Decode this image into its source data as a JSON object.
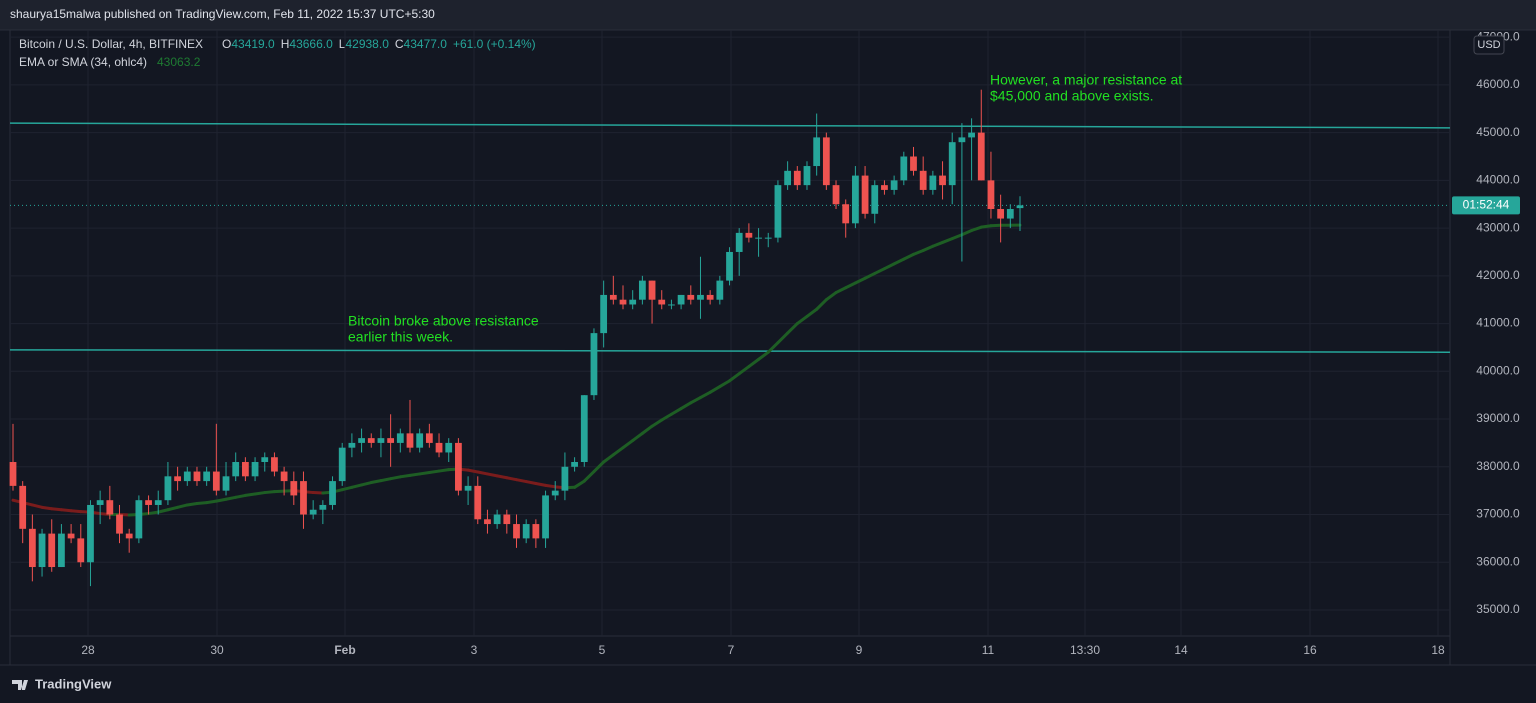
{
  "chart_data": {
    "type": "candlestick",
    "header": "shaurya15malwa published on TradingView.com, Feb 11, 2022 15:37 UTC+5:30",
    "symbol": "Bitcoin / U.S. Dollar, 4h, BITFINEX",
    "ohlc_legend": [
      "O",
      "43419.0",
      "H",
      "43666.0",
      "L",
      "42938.0",
      "C",
      "43477.0",
      "+61.0 (+0.14%)"
    ],
    "indicator_name": "EMA or SMA (34, ohlc4)",
    "indicator_value": "43063.2",
    "currency": "USD",
    "countdown": "01:52:44",
    "brand": "TradingView",
    "annotations": [
      "However, a major resistance at",
      "$45,000 and above exists.",
      "Bitcoin broke above resistance",
      "earlier this week."
    ],
    "up_color": "#26a69a",
    "down_color": "#ef5350",
    "ema_up_color": "#1e5e24",
    "ema_down_color": "#7a1c1c",
    "line_color": "#26a69a",
    "annotation_color": "#22e022",
    "grid": true,
    "ylim": [
      34455,
      47150
    ],
    "yticks": [
      {
        "value": 35000,
        "label": "35000.0"
      },
      {
        "value": 36000,
        "label": "36000.0"
      },
      {
        "value": 37000,
        "label": "37000.0"
      },
      {
        "value": 38000,
        "label": "38000.0"
      },
      {
        "value": 39000,
        "label": "39000.0"
      },
      {
        "value": 40000,
        "label": "40000.0"
      },
      {
        "value": 41000,
        "label": "41000.0"
      },
      {
        "value": 42000,
        "label": "42000.0"
      },
      {
        "value": 43000,
        "label": "43000.0"
      },
      {
        "value": 44000,
        "label": "44000.0"
      },
      {
        "value": 45000,
        "label": "45000.0"
      },
      {
        "value": 46000,
        "label": "46000.0"
      },
      {
        "value": 47000,
        "label": "47000.0"
      }
    ],
    "xtick_labels": [
      "28",
      "30",
      "Feb",
      "3",
      "5",
      "7",
      "9",
      "11",
      "13:30",
      "14",
      "16",
      "18"
    ],
    "last_price": 43477,
    "resistance": [
      {
        "start": 45200,
        "end": 45100
      },
      {
        "start": 40450,
        "end": 40400
      }
    ],
    "open": [
      38100,
      37600,
      36700,
      35900,
      36600,
      35900,
      36600,
      36500,
      36000,
      37200,
      37300,
      37000,
      36600,
      36500,
      37300,
      37200,
      37300,
      37800,
      37700,
      37900,
      37700,
      37900,
      37500,
      37800,
      38100,
      37800,
      38100,
      38200,
      37900,
      37700,
      37700,
      37000,
      37100,
      37200,
      37700,
      38400,
      38500,
      38600,
      38500,
      38600,
      38500,
      38700,
      38400,
      38700,
      38500,
      38300,
      38500,
      37500,
      37600,
      36900,
      36800,
      37000,
      36800,
      36500,
      36800,
      36500,
      37400,
      37500,
      38000,
      38100,
      39500,
      40800,
      41600,
      41500,
      41400,
      41500,
      41900,
      41500,
      41400,
      41400,
      41600,
      41500,
      41600,
      41500,
      41900,
      42500,
      42900,
      42800,
      42800,
      42800,
      43900,
      44200,
      43900,
      44300,
      44900,
      43900,
      43500,
      43100,
      44100,
      43300,
      43900,
      43800,
      44000,
      44500,
      44200,
      43800,
      44100,
      43900,
      44800,
      44900,
      45000,
      44000,
      43400,
      43200,
      43419
    ],
    "high": [
      38900,
      37700,
      37000,
      36700,
      36900,
      36800,
      36800,
      36800,
      37300,
      37500,
      37600,
      37200,
      36700,
      37400,
      37400,
      37500,
      38100,
      38000,
      38000,
      38000,
      38000,
      38900,
      38100,
      38300,
      38200,
      38200,
      38300,
      38300,
      38000,
      37900,
      37900,
      37300,
      37300,
      37800,
      38500,
      38700,
      38800,
      38700,
      38800,
      39100,
      38800,
      39400,
      38800,
      38900,
      38700,
      38600,
      38600,
      37800,
      37800,
      37100,
      37100,
      37100,
      37000,
      36900,
      36900,
      37500,
      37700,
      38300,
      38200,
      39500,
      40900,
      41900,
      42000,
      41800,
      41700,
      42000,
      41900,
      41700,
      41500,
      41600,
      41800,
      42400,
      41700,
      42000,
      42600,
      43000,
      43100,
      43000,
      42900,
      44000,
      44400,
      44300,
      44400,
      45400,
      45000,
      44000,
      43600,
      44300,
      44300,
      44000,
      44000,
      44100,
      44600,
      44700,
      44500,
      44200,
      44400,
      45000,
      45200,
      45300,
      45900,
      44600,
      43700,
      43500,
      43666
    ],
    "low": [
      37500,
      36400,
      35600,
      35700,
      35800,
      35900,
      36400,
      35900,
      35500,
      36800,
      36900,
      36400,
      36200,
      36400,
      37000,
      37000,
      37200,
      37500,
      37600,
      37600,
      37600,
      37400,
      37400,
      37700,
      37700,
      37700,
      37900,
      37800,
      37400,
      37200,
      36700,
      36900,
      36800,
      37100,
      37600,
      38200,
      38300,
      38400,
      38200,
      38000,
      38300,
      38300,
      38300,
      38400,
      38200,
      38100,
      37400,
      37200,
      36800,
      36600,
      36700,
      36600,
      36300,
      36400,
      36300,
      36300,
      37300,
      37300,
      37900,
      38000,
      39400,
      40500,
      41400,
      41300,
      41300,
      41400,
      41000,
      41300,
      41300,
      41300,
      41400,
      41100,
      41400,
      41400,
      41800,
      42000,
      42700,
      42400,
      42600,
      42700,
      43800,
      43800,
      43800,
      44100,
      43800,
      43400,
      42800,
      43000,
      43200,
      43100,
      43700,
      43700,
      43900,
      44100,
      43700,
      43700,
      43600,
      43500,
      42300,
      44000,
      44000,
      43200,
      42700,
      43000,
      42938
    ],
    "close": [
      37600,
      36700,
      35900,
      36600,
      35900,
      36600,
      36500,
      36000,
      37200,
      37300,
      37000,
      36600,
      36500,
      37300,
      37200,
      37300,
      37800,
      37700,
      37900,
      37700,
      37900,
      37500,
      37800,
      38100,
      37800,
      38100,
      38200,
      37900,
      37700,
      37400,
      37000,
      37100,
      37200,
      37700,
      38400,
      38500,
      38600,
      38500,
      38600,
      38500,
      38700,
      38400,
      38700,
      38500,
      38300,
      38500,
      37500,
      37600,
      36900,
      36800,
      37000,
      36800,
      36500,
      36800,
      36500,
      37400,
      37500,
      38000,
      38100,
      39500,
      40800,
      41600,
      41500,
      41400,
      41500,
      41900,
      41500,
      41400,
      41400,
      41600,
      41500,
      41600,
      41500,
      41900,
      42500,
      42900,
      42800,
      42800,
      42800,
      43900,
      44200,
      43900,
      44300,
      44900,
      43900,
      43500,
      43100,
      44100,
      43300,
      43900,
      43800,
      44000,
      44500,
      44200,
      43800,
      44100,
      43900,
      44800,
      44900,
      45000,
      44000,
      43400,
      43200,
      43400,
      43477
    ],
    "ema": [
      37300,
      37250,
      37200,
      37150,
      37120,
      37100,
      37080,
      37060,
      37050,
      37020,
      37000,
      37000,
      36990,
      37000,
      37020,
      37050,
      37100,
      37150,
      37200,
      37230,
      37250,
      37280,
      37320,
      37360,
      37400,
      37430,
      37460,
      37480,
      37490,
      37500,
      37480,
      37460,
      37450,
      37470,
      37520,
      37570,
      37620,
      37670,
      37710,
      37750,
      37790,
      37820,
      37850,
      37880,
      37910,
      37940,
      37950,
      37930,
      37890,
      37850,
      37810,
      37770,
      37730,
      37690,
      37650,
      37610,
      37580,
      37560,
      37570,
      37700,
      37900,
      38100,
      38250,
      38400,
      38550,
      38700,
      38850,
      38980,
      39100,
      39220,
      39340,
      39450,
      39560,
      39680,
      39800,
      39950,
      40100,
      40250,
      40400,
      40600,
      40800,
      41000,
      41150,
      41300,
      41500,
      41650,
      41750,
      41850,
      41950,
      42050,
      42150,
      42250,
      42350,
      42450,
      42530,
      42620,
      42700,
      42780,
      42860,
      42950,
      43020,
      43050,
      43060,
      43060,
      43063
    ]
  }
}
